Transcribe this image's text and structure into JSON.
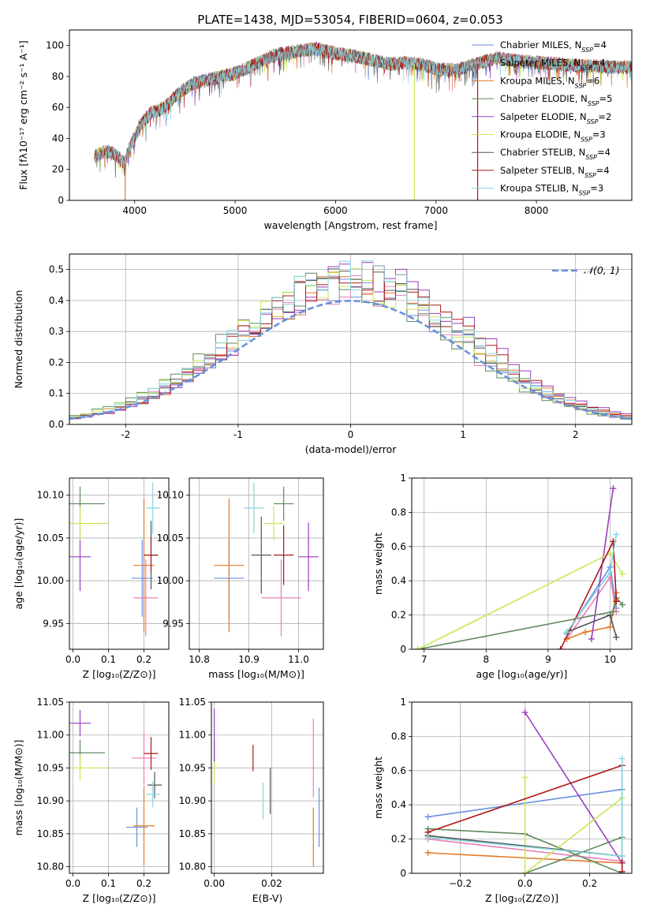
{
  "figure_title": "PLATE=1438, MJD=53054, FIBERID=0604, z=0.053",
  "colors": {
    "chabrier_miles": "#6a8fdc",
    "salpeter_miles": "#e880b8",
    "kroupa_miles": "#e07a2a",
    "chabrier_elodie": "#5f8a5f",
    "salpeter_elodie": "#9b3dbd",
    "kroupa_elodie": "#c7e85a",
    "chabrier_stelib": "#555555",
    "salpeter_stelib": "#b01818",
    "kroupa_stelib": "#88d6df",
    "normal": "#6a8fdc"
  },
  "chart_data": [
    {
      "id": "spectrum",
      "type": "line",
      "title": "PLATE=1438, MJD=53054, FIBERID=0604, z=0.053",
      "xlabel": "wavelength [Angstrom, rest frame]",
      "ylabel": "Flux [fλ10⁻¹⁷ erg cm⁻² s⁻¹ A⁻¹]",
      "xlim": [
        3350,
        8950
      ],
      "ylim": [
        0,
        110
      ],
      "xticks": [
        4000,
        5000,
        6000,
        7000,
        8000
      ],
      "yticks": [
        0,
        20,
        40,
        60,
        80,
        100
      ],
      "legend_position": "top-right",
      "series": [
        {
          "name": "Chabrier MILES, N_SSP=4",
          "color_key": "chabrier_miles"
        },
        {
          "name": "Salpeter MILES, N_SSP=4",
          "color_key": "salpeter_miles"
        },
        {
          "name": "Kroupa MILES, N_SSP=6",
          "color_key": "kroupa_miles"
        },
        {
          "name": "Chabrier ELODIE, N_SSP=5",
          "color_key": "chabrier_elodie"
        },
        {
          "name": "Salpeter ELODIE, N_SSP=2",
          "color_key": "salpeter_elodie"
        },
        {
          "name": "Kroupa ELODIE, N_SSP=3",
          "color_key": "kroupa_elodie"
        },
        {
          "name": "Chabrier STELIB, N_SSP=4",
          "color_key": "chabrier_stelib"
        },
        {
          "name": "Salpeter STELIB, N_SSP=4",
          "color_key": "salpeter_stelib"
        },
        {
          "name": "Kroupa STELIB, N_SSP=3",
          "color_key": "kroupa_stelib"
        }
      ],
      "continuum_x": [
        3600,
        3700,
        3800,
        3900,
        3950,
        4050,
        4150,
        4300,
        4400,
        4500,
        4600,
        4800,
        5000,
        5200,
        5400,
        5600,
        5800,
        6000,
        6200,
        6400,
        6560,
        6700,
        6900,
        7000,
        7200,
        7400,
        7600,
        7800,
        8000,
        8200,
        8400,
        8800
      ],
      "continuum_y": [
        28,
        32,
        30,
        24,
        34,
        48,
        56,
        60,
        67,
        72,
        76,
        79,
        82,
        88,
        94,
        96,
        98,
        95,
        93,
        90,
        88,
        89,
        87,
        85,
        84,
        88,
        92,
        90,
        89,
        88,
        87,
        86
      ],
      "end_points": {
        "salpeter_miles": 8700,
        "salpeter_elodie": 8800,
        "chabrier_stelib": 8950,
        "kroupa_stelib": 8950
      },
      "drop_points": [
        {
          "x": 3905,
          "color_key": "kroupa_miles"
        },
        {
          "x": 6785,
          "color_key": "kroupa_elodie"
        },
        {
          "x": 7415,
          "color_key": "salpeter_stelib"
        }
      ]
    },
    {
      "id": "residuals",
      "type": "histogram",
      "xlabel": "(data-model)/error",
      "ylabel": "Normed distribution",
      "xlim": [
        -2.5,
        2.5
      ],
      "ylim": [
        0,
        0.55
      ],
      "xticks": [
        -2,
        -1,
        0,
        1,
        2
      ],
      "yticks": [
        0.0,
        0.1,
        0.2,
        0.3,
        0.4,
        0.5
      ],
      "bin_width": 0.1,
      "legend": [
        {
          "name": "𝒩(0, 1)",
          "style": "dashed"
        }
      ],
      "legend_position": "top-right",
      "series": [
        {
          "color_key": "chabrier_miles",
          "shift": 0.0,
          "scale": 1.12
        },
        {
          "color_key": "salpeter_miles",
          "shift": -0.05,
          "scale": 1.1
        },
        {
          "color_key": "kroupa_miles",
          "shift": 0.05,
          "scale": 1.13
        },
        {
          "color_key": "chabrier_elodie",
          "shift": -0.1,
          "scale": 1.15
        },
        {
          "color_key": "salpeter_elodie",
          "shift": 0.1,
          "scale": 1.22
        },
        {
          "color_key": "kroupa_elodie",
          "shift": -0.05,
          "scale": 1.16
        },
        {
          "color_key": "chabrier_stelib",
          "shift": 0.0,
          "scale": 1.14
        },
        {
          "color_key": "salpeter_stelib",
          "shift": 0.05,
          "scale": 1.18
        },
        {
          "color_key": "kroupa_stelib",
          "shift": 0.0,
          "scale": 1.2
        }
      ]
    },
    {
      "id": "age_vs_z",
      "type": "scatter",
      "xlabel": "Z [log₁₀(Z/Z⊙)]",
      "ylabel": "age  [log₁₀(age/yr)]",
      "xlim": [
        -0.01,
        0.27
      ],
      "ylim": [
        9.92,
        10.12
      ],
      "xticks": [
        0.0,
        0.1,
        0.2
      ],
      "xtick_labels": [
        "0.0",
        "0.1",
        "0.2"
      ],
      "yticks": [
        9.95,
        10.0,
        10.05,
        10.1
      ],
      "ytick_labels": [
        "9.95",
        "10.00",
        "10.05",
        "10.10"
      ],
      "points": [
        {
          "color_key": "chabrier_miles",
          "x": 0.195,
          "y": 10.003,
          "xerr": 0.03,
          "yerr": 0.045
        },
        {
          "color_key": "salpeter_miles",
          "x": 0.205,
          "y": 9.98,
          "xerr": 0.035,
          "yerr": 0.045
        },
        {
          "color_key": "kroupa_miles",
          "x": 0.2,
          "y": 10.018,
          "xerr": 0.03,
          "yerr": 0.078
        },
        {
          "color_key": "chabrier_elodie",
          "x": 0.02,
          "y": 10.09,
          "xerr": 0.07,
          "yerr": 0.02
        },
        {
          "color_key": "salpeter_elodie",
          "x": 0.02,
          "y": 10.028,
          "xerr": 0.03,
          "yerr": 0.04
        },
        {
          "color_key": "kroupa_elodie",
          "x": 0.02,
          "y": 10.067,
          "xerr": 0.08,
          "yerr": 0.02
        },
        {
          "color_key": "chabrier_stelib",
          "x": 0.22,
          "y": 10.03,
          "xerr": 0.015,
          "yerr": 0.04
        },
        {
          "color_key": "salpeter_stelib",
          "x": 0.22,
          "y": 10.03,
          "xerr": 0.02,
          "yerr": 0.02
        },
        {
          "color_key": "kroupa_stelib",
          "x": 0.225,
          "y": 10.085,
          "xerr": 0.02,
          "yerr": 0.03
        }
      ]
    },
    {
      "id": "age_vs_mass",
      "type": "scatter",
      "xlabel": "mass [log₁₀(M/M⊙)]",
      "ylabel": "",
      "xlim": [
        10.78,
        11.05
      ],
      "ylim": [
        9.92,
        10.12
      ],
      "xticks": [
        10.8,
        10.9,
        11.0
      ],
      "xtick_labels": [
        "10.8",
        "10.9",
        "11.0"
      ],
      "yticks": [
        9.95,
        10.0,
        10.05,
        10.1
      ],
      "ytick_labels": [
        "9.95",
        "10.00",
        "10.05",
        "10.10"
      ],
      "points": [
        {
          "color_key": "chabrier_miles",
          "x": 10.86,
          "y": 10.003,
          "xerr": 0.03,
          "yerr": 0.045
        },
        {
          "color_key": "salpeter_miles",
          "x": 10.965,
          "y": 9.98,
          "xerr": 0.04,
          "yerr": 0.045
        },
        {
          "color_key": "kroupa_miles",
          "x": 10.86,
          "y": 10.018,
          "xerr": 0.03,
          "yerr": 0.078
        },
        {
          "color_key": "chabrier_elodie",
          "x": 10.97,
          "y": 10.09,
          "xerr": 0.02,
          "yerr": 0.02
        },
        {
          "color_key": "salpeter_elodie",
          "x": 11.02,
          "y": 10.028,
          "xerr": 0.02,
          "yerr": 0.04
        },
        {
          "color_key": "kroupa_elodie",
          "x": 10.95,
          "y": 10.067,
          "xerr": 0.02,
          "yerr": 0.02
        },
        {
          "color_key": "chabrier_stelib",
          "x": 10.925,
          "y": 10.03,
          "xerr": 0.02,
          "yerr": 0.045
        },
        {
          "color_key": "salpeter_stelib",
          "x": 10.97,
          "y": 10.03,
          "xerr": 0.02,
          "yerr": 0.035
        },
        {
          "color_key": "kroupa_stelib",
          "x": 10.91,
          "y": 10.085,
          "xerr": 0.02,
          "yerr": 0.03
        }
      ]
    },
    {
      "id": "weight_vs_age",
      "type": "line",
      "xlabel": "age  [log₁₀(age/yr)]",
      "ylabel": "mass weight",
      "xlim": [
        6.8,
        10.35
      ],
      "ylim": [
        0,
        1.0
      ],
      "xticks": [
        7,
        8,
        9,
        10
      ],
      "xtick_labels": [
        "7",
        "8",
        "9",
        "10"
      ],
      "yticks": [
        0.0,
        0.2,
        0.4,
        0.6,
        0.8,
        1.0
      ],
      "series": [
        {
          "color_key": "chabrier_miles",
          "x": [
            9.3,
            10.0,
            10.1
          ],
          "y": [
            0.09,
            0.48,
            0.24
          ]
        },
        {
          "color_key": "salpeter_miles",
          "x": [
            9.3,
            10.0,
            10.1
          ],
          "y": [
            0.06,
            0.42,
            0.22
          ]
        },
        {
          "color_key": "kroupa_miles",
          "x": [
            9.3,
            9.6,
            10.0,
            10.1
          ],
          "y": [
            0.06,
            0.1,
            0.13,
            0.33
          ]
        },
        {
          "color_key": "chabrier_elodie",
          "x": [
            6.9,
            10.05,
            10.1,
            10.2
          ],
          "y": [
            0.0,
            0.22,
            0.3,
            0.26
          ]
        },
        {
          "color_key": "salpeter_elodie",
          "x": [
            9.7,
            10.05
          ],
          "y": [
            0.06,
            0.94
          ]
        },
        {
          "color_key": "kroupa_elodie",
          "x": [
            6.9,
            10.0,
            10.2
          ],
          "y": [
            0.0,
            0.56,
            0.44
          ]
        },
        {
          "color_key": "chabrier_stelib",
          "x": [
            9.3,
            10.0,
            10.1
          ],
          "y": [
            0.1,
            0.2,
            0.07
          ]
        },
        {
          "color_key": "salpeter_stelib",
          "x": [
            9.2,
            10.05,
            10.1
          ],
          "y": [
            0.0,
            0.63,
            0.28
          ]
        },
        {
          "color_key": "kroupa_stelib",
          "x": [
            9.3,
            10.0,
            10.1
          ],
          "y": [
            0.1,
            0.45,
            0.67
          ]
        }
      ]
    },
    {
      "id": "mass_vs_z",
      "type": "scatter",
      "xlabel": "Z [log₁₀(Z/Z⊙)]",
      "ylabel": "mass [log₁₀(M/M⊙)]",
      "xlim": [
        -0.01,
        0.27
      ],
      "ylim": [
        10.79,
        11.05
      ],
      "xticks": [
        0.0,
        0.1,
        0.2
      ],
      "xtick_labels": [
        "0.0",
        "0.1",
        "0.2"
      ],
      "yticks": [
        10.8,
        10.85,
        10.9,
        10.95,
        11.0,
        11.05
      ],
      "ytick_labels": [
        "10.80",
        "10.85",
        "10.90",
        "10.95",
        "11.00",
        "11.05"
      ],
      "points": [
        {
          "color_key": "chabrier_miles",
          "x": 0.18,
          "y": 10.86,
          "xerr": 0.03,
          "yerr": 0.03
        },
        {
          "color_key": "salpeter_miles",
          "x": 0.2,
          "y": 10.965,
          "xerr": 0.035,
          "yerr": 0.04
        },
        {
          "color_key": "kroupa_miles",
          "x": 0.2,
          "y": 10.862,
          "xerr": 0.03,
          "yerr": 0.06
        },
        {
          "color_key": "chabrier_elodie",
          "x": 0.02,
          "y": 10.973,
          "xerr": 0.07,
          "yerr": 0.02
        },
        {
          "color_key": "salpeter_elodie",
          "x": 0.02,
          "y": 11.018,
          "xerr": 0.03,
          "yerr": 0.02
        },
        {
          "color_key": "kroupa_elodie",
          "x": 0.02,
          "y": 10.95,
          "xerr": 0.08,
          "yerr": 0.02
        },
        {
          "color_key": "chabrier_stelib",
          "x": 0.23,
          "y": 10.924,
          "xerr": 0.02,
          "yerr": 0.02
        },
        {
          "color_key": "salpeter_stelib",
          "x": 0.22,
          "y": 10.972,
          "xerr": 0.02,
          "yerr": 0.025
        },
        {
          "color_key": "kroupa_stelib",
          "x": 0.225,
          "y": 10.91,
          "xerr": 0.02,
          "yerr": 0.02
        }
      ]
    },
    {
      "id": "mass_vs_ebv",
      "type": "scatter",
      "xlabel": "E(B-V)",
      "ylabel": "",
      "xlim": [
        -0.001,
        0.038
      ],
      "ylim": [
        10.79,
        11.05
      ],
      "xticks": [
        0.0,
        0.02
      ],
      "xtick_labels": [
        "0.00",
        "0.02"
      ],
      "yticks": [
        10.8,
        10.85,
        10.9,
        10.95,
        11.0,
        11.05
      ],
      "ytick_labels": [
        "10.80",
        "10.85",
        "10.90",
        "10.95",
        "11.00",
        "11.05"
      ],
      "points": [
        {
          "color_key": "chabrier_miles",
          "x": 0.0365,
          "y": 10.875,
          "xerr": 0,
          "yerr": 0.045
        },
        {
          "color_key": "salpeter_miles",
          "x": 0.0345,
          "y": 10.965,
          "xerr": 0,
          "yerr": 0.06
        },
        {
          "color_key": "kroupa_miles",
          "x": 0.0345,
          "y": 10.845,
          "xerr": 0,
          "yerr": 0.045
        },
        {
          "color_key": "chabrier_elodie",
          "x": 0.0,
          "y": 10.972,
          "xerr": 0,
          "yerr": 0.02
        },
        {
          "color_key": "salpeter_elodie",
          "x": 0.0,
          "y": 11.0,
          "xerr": 0,
          "yerr": 0.04
        },
        {
          "color_key": "kroupa_elodie",
          "x": 0.0,
          "y": 10.942,
          "xerr": 0,
          "yerr": 0.018
        },
        {
          "color_key": "chabrier_stelib",
          "x": 0.0195,
          "y": 10.915,
          "xerr": 0,
          "yerr": 0.035
        },
        {
          "color_key": "salpeter_stelib",
          "x": 0.0135,
          "y": 10.965,
          "xerr": 0,
          "yerr": 0.02
        },
        {
          "color_key": "kroupa_stelib",
          "x": 0.017,
          "y": 10.9,
          "xerr": 0,
          "yerr": 0.028
        }
      ]
    },
    {
      "id": "weight_vs_z",
      "type": "line",
      "xlabel": "Z [log₁₀(Z/Z⊙)]",
      "ylabel": "mass weight",
      "xlim": [
        -0.35,
        0.33
      ],
      "ylim": [
        0,
        1.0
      ],
      "xticks": [
        -0.2,
        0.0,
        0.2
      ],
      "xtick_labels": [
        "−0.2",
        "0.0",
        "0.2"
      ],
      "yticks": [
        0.0,
        0.2,
        0.4,
        0.6,
        0.8,
        1.0
      ],
      "series": [
        {
          "color_key": "chabrier_miles",
          "x": [
            -0.3,
            0.3
          ],
          "y": [
            0.33,
            0.49
          ]
        },
        {
          "color_key": "salpeter_miles",
          "x": [
            -0.3,
            0.3
          ],
          "y": [
            0.2,
            0.07
          ]
        },
        {
          "color_key": "kroupa_miles",
          "x": [
            -0.3,
            0.3
          ],
          "y": [
            0.12,
            0.06
          ]
        },
        {
          "color_key": "chabrier_elodie",
          "x": [
            -0.3,
            0.0,
            0.3,
            0.3,
            0.0
          ],
          "y": [
            0.26,
            0.23,
            0.0,
            0.21,
            0.0
          ]
        },
        {
          "color_key": "salpeter_elodie",
          "x": [
            0.0,
            0.3
          ],
          "y": [
            0.94,
            0.06
          ]
        },
        {
          "color_key": "kroupa_elodie",
          "x": [
            0.0,
            0.0,
            0.3
          ],
          "y": [
            0.56,
            0.0,
            0.44
          ]
        },
        {
          "color_key": "chabrier_stelib",
          "x": [
            -0.3,
            0.3
          ],
          "y": [
            0.22,
            0.1
          ]
        },
        {
          "color_key": "salpeter_stelib",
          "x": [
            -0.3,
            0.3,
            0.3
          ],
          "y": [
            0.24,
            0.63,
            0.01
          ]
        },
        {
          "color_key": "kroupa_stelib",
          "x": [
            -0.3,
            0.3,
            0.3
          ],
          "y": [
            0.21,
            0.1,
            0.67
          ]
        }
      ]
    }
  ]
}
